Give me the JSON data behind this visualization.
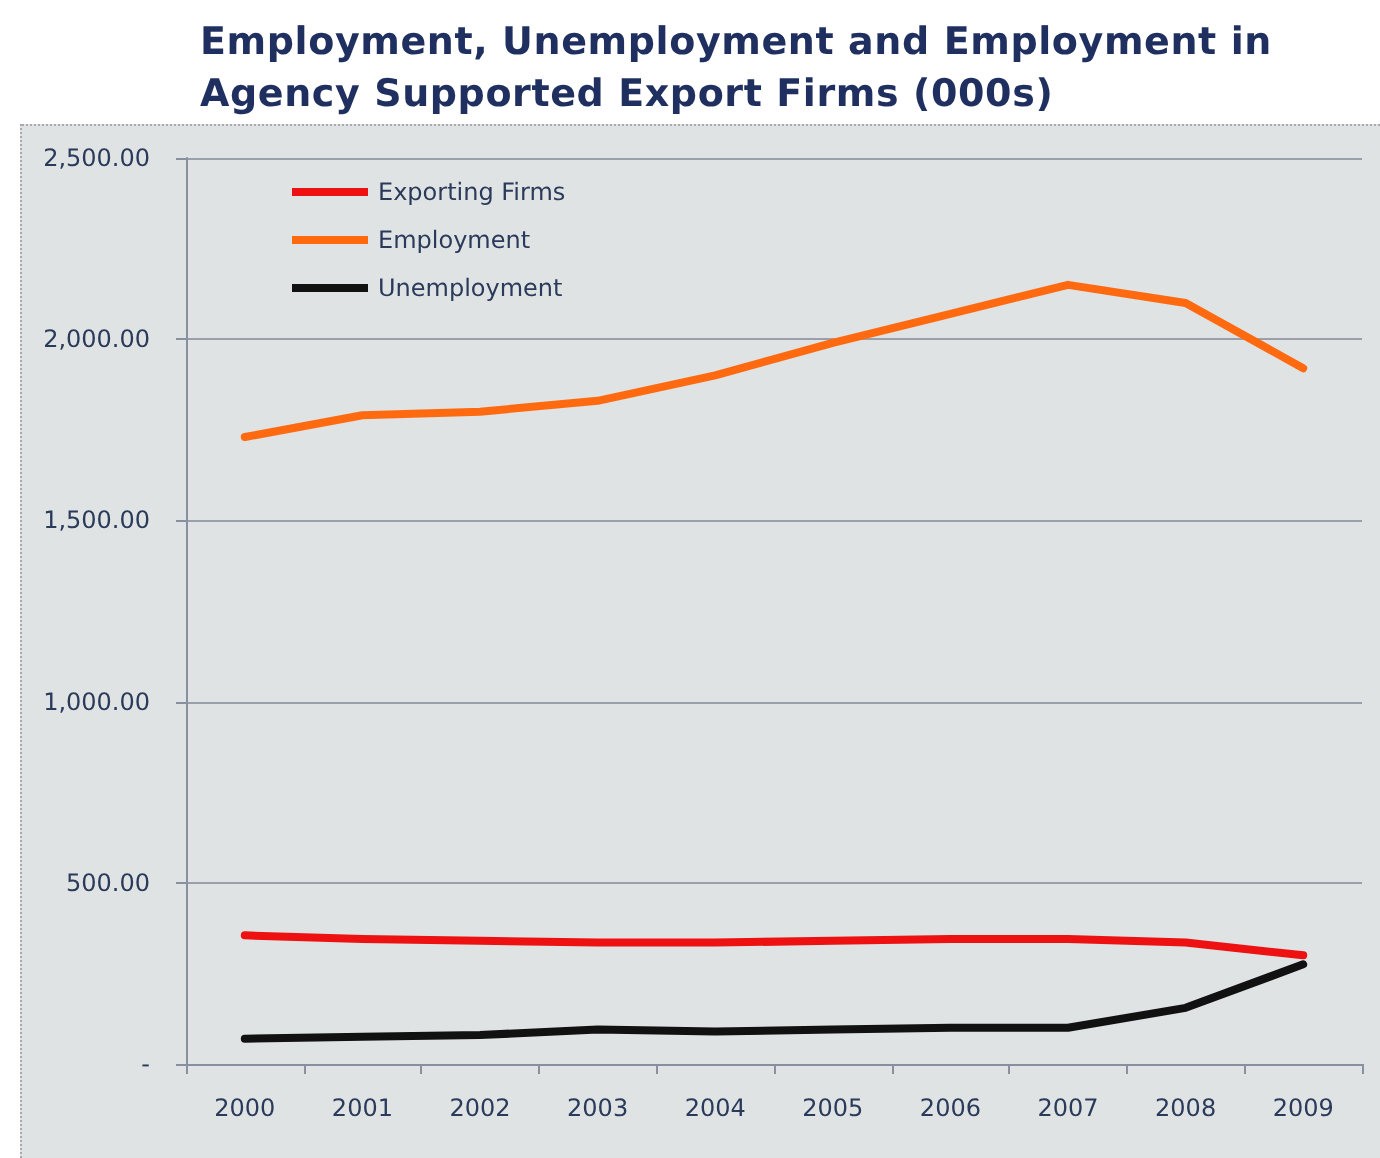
{
  "chart_data": {
    "type": "line",
    "title": "Employment, Unemployment and Employment in Agency Supported Export Firms (000s)",
    "categories": [
      "2000",
      "2001",
      "2002",
      "2003",
      "2004",
      "2005",
      "2006",
      "2007",
      "2008",
      "2009"
    ],
    "series": [
      {
        "name": "Exporting Firms",
        "color": "#ee1111",
        "values": [
          355,
          345,
          340,
          335,
          335,
          340,
          345,
          345,
          335,
          300
        ]
      },
      {
        "name": "Employment",
        "color": "#ff6a10",
        "values": [
          1730,
          1790,
          1800,
          1830,
          1900,
          1990,
          2070,
          2150,
          2100,
          1920
        ]
      },
      {
        "name": "Unemployment",
        "color": "#111111",
        "values": [
          70,
          75,
          80,
          95,
          90,
          95,
          100,
          100,
          155,
          275
        ]
      }
    ],
    "ylim": [
      0,
      2500
    ],
    "yticks": [
      {
        "value": 0,
        "label": "-"
      },
      {
        "value": 500,
        "label": "500.00"
      },
      {
        "value": 1000,
        "label": "1,000.00"
      },
      {
        "value": 1500,
        "label": "1,500.00"
      },
      {
        "value": 2000,
        "label": "2,000.00"
      },
      {
        "value": 2500,
        "label": "2,500.00"
      }
    ],
    "grid": "y",
    "legend": "top left",
    "marker": "none",
    "line_style": "solid"
  }
}
